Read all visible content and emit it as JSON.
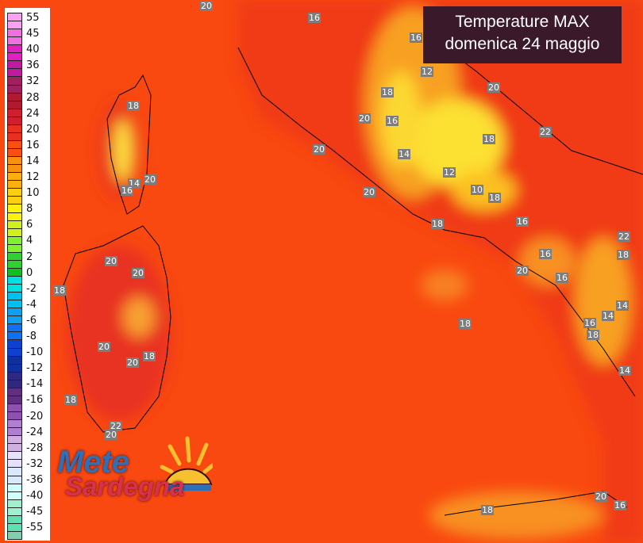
{
  "title": {
    "line1": "Temperature MAX",
    "line2": "domenica 24 maggio"
  },
  "logo": {
    "line1": "Mete",
    "line2": "Sardegna"
  },
  "legend": {
    "labels": [
      "55",
      "45",
      "40",
      "36",
      "32",
      "28",
      "24",
      "20",
      "16",
      "14",
      "12",
      "10",
      "8",
      "6",
      "4",
      "2",
      "0",
      "-2",
      "-4",
      "-6",
      "-8",
      "-10",
      "-12",
      "-14",
      "-16",
      "-20",
      "-24",
      "-28",
      "-32",
      "-36",
      "-40",
      "-45",
      "-55"
    ],
    "colors": [
      "#f9a0f0",
      "#f070e0",
      "#e020c0",
      "#c01aa0",
      "#a02060",
      "#b01a30",
      "#d02030",
      "#e83020",
      "#f85010",
      "#f89010",
      "#fcb010",
      "#fcd010",
      "#fcf010",
      "#d0f020",
      "#80f030",
      "#30d030",
      "#10c020",
      "#00e0e0",
      "#00c0f0",
      "#10a0f0",
      "#1070f0",
      "#1040d0",
      "#1030a0",
      "#302880",
      "#603080",
      "#9050b0",
      "#b080d0",
      "#d0b0e0",
      "#e8e0f8",
      "#d8e8ff",
      "#d0ffff",
      "#a0f0d0",
      "#60e0b0",
      "#80d0b0"
    ]
  },
  "map": {
    "sea_color": "#f94810",
    "labels": [
      "20",
      "16",
      "16",
      "12",
      "18",
      "20",
      "20",
      "16",
      "18",
      "22",
      "18",
      "20",
      "14",
      "12",
      "14",
      "20",
      "16",
      "10",
      "20",
      "18",
      "16",
      "18",
      "22",
      "18",
      "16",
      "20",
      "20",
      "20",
      "16",
      "18",
      "14",
      "16",
      "14",
      "18",
      "18",
      "20",
      "18",
      "20",
      "14",
      "18",
      "22",
      "20",
      "18",
      "16",
      "20"
    ]
  }
}
